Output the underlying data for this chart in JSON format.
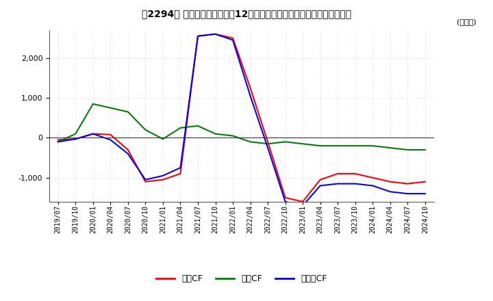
{
  "title_text": "【2294】 キャッシュフローの12か月移動合計の対前年同期増減額の推移",
  "ylabel": "(百万円)",
  "ylim": [
    -1600,
    2700
  ],
  "yticks": [
    -1000,
    0,
    1000,
    2000
  ],
  "legend_labels": [
    "営業CF",
    "投資CF",
    "フリーCF"
  ],
  "line_colors": [
    "#ff0000",
    "#008000",
    "#0000ff"
  ],
  "dates": [
    "2019/07",
    "2019/10",
    "2020/01",
    "2020/04",
    "2020/07",
    "2020/10",
    "2021/01",
    "2021/04",
    "2021/07",
    "2021/10",
    "2022/01",
    "2022/04",
    "2022/07",
    "2022/10",
    "2023/01",
    "2023/04",
    "2023/07",
    "2023/10",
    "2024/01",
    "2024/04",
    "2024/07",
    "2024/10"
  ],
  "operating_cf": [
    -50,
    -30,
    100,
    80,
    -300,
    -1100,
    -1050,
    -900,
    2550,
    2600,
    2500,
    1250,
    -100,
    -1500,
    -1600,
    -1050,
    -900,
    -900,
    -1000,
    -1100,
    -1150,
    -1100
  ],
  "investing_cf": [
    -100,
    100,
    850,
    750,
    650,
    200,
    -30,
    250,
    300,
    100,
    50,
    -100,
    -150,
    -100,
    -150,
    -200,
    -200,
    -200,
    -200,
    -250,
    -300,
    -300
  ],
  "free_cf": [
    -100,
    -30,
    100,
    -50,
    -400,
    -1050,
    -950,
    -750,
    2550,
    2600,
    2450,
    1050,
    -250,
    -1600,
    -1700,
    -1200,
    -1150,
    -1150,
    -1200,
    -1350,
    -1400,
    -1400
  ],
  "grid_color": "#cccccc",
  "background_color": "#ffffff"
}
